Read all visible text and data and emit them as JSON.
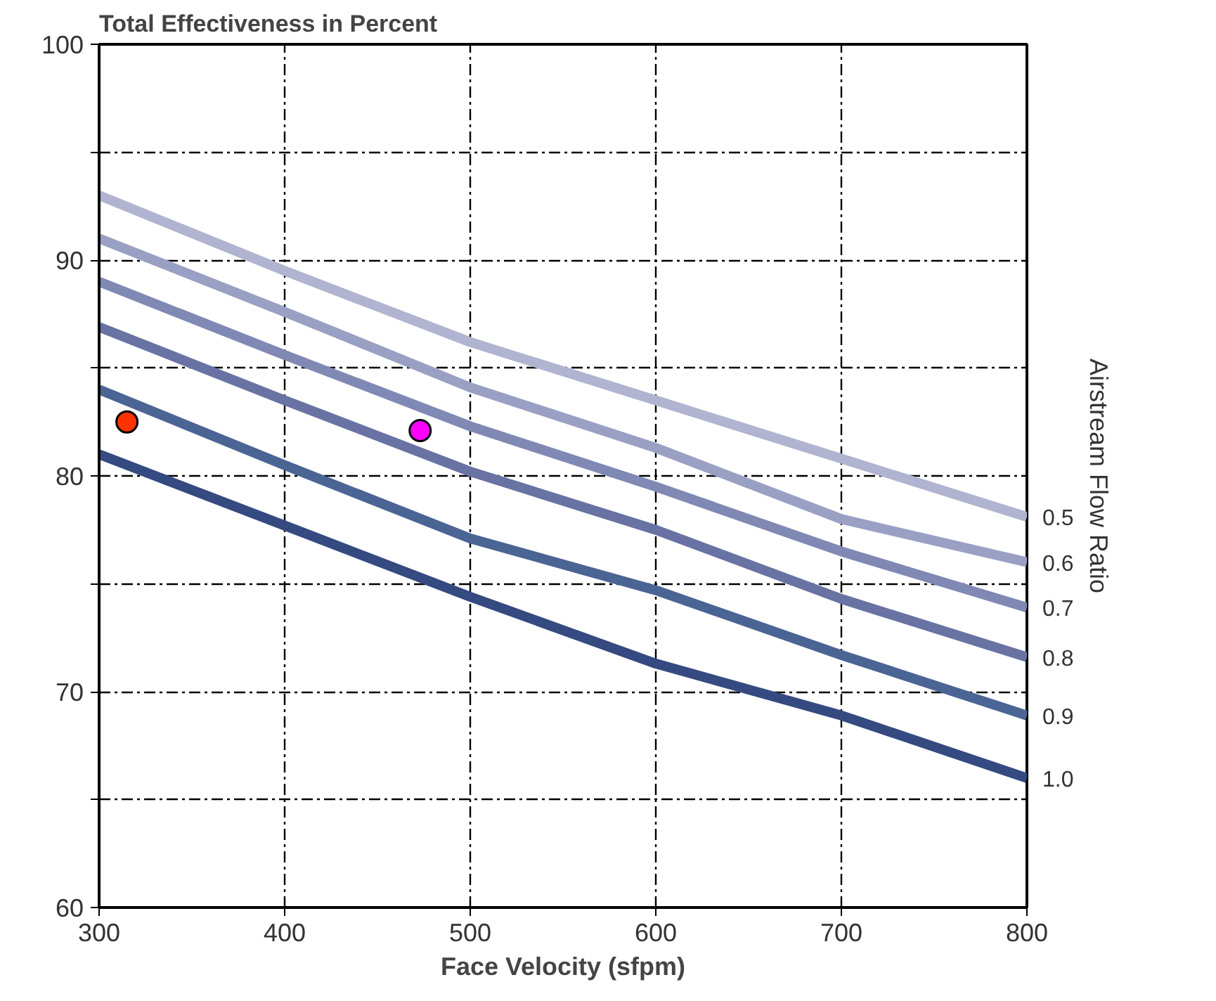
{
  "chart_data": {
    "type": "line",
    "title": "Total Effectiveness in Percent",
    "xlabel": "Face Velocity (sfpm)",
    "legend_title": "Airstream Flow Ratio",
    "grid": true,
    "line_style": "solid",
    "marker": "none",
    "x": [
      300,
      400,
      500,
      600,
      700,
      800
    ],
    "xlim": [
      300,
      800
    ],
    "xticks": [
      300,
      400,
      500,
      600,
      700,
      800
    ],
    "ylim": [
      60,
      100
    ],
    "yticks": [
      60,
      {
        "value": 65,
        "label": null
      },
      70,
      {
        "value": 75,
        "label": null
      },
      80,
      {
        "value": 85,
        "label": null
      },
      90,
      {
        "value": 95,
        "label": null
      },
      100
    ],
    "series": [
      {
        "name": "0.5",
        "color": "#b0b4d0",
        "values": [
          93.0,
          89.5,
          86.2,
          83.5,
          80.8,
          78.1
        ]
      },
      {
        "name": "0.6",
        "color": "#9aa0c4",
        "values": [
          91.0,
          87.6,
          84.1,
          81.3,
          78.0,
          76.0
        ]
      },
      {
        "name": "0.7",
        "color": "#8088b4",
        "values": [
          89.0,
          85.6,
          82.3,
          79.5,
          76.5,
          73.9
        ]
      },
      {
        "name": "0.8",
        "color": "#6873a3",
        "values": [
          86.9,
          83.5,
          80.2,
          77.5,
          74.3,
          71.6
        ]
      },
      {
        "name": "0.9",
        "color": "#4a6494",
        "values": [
          84.0,
          80.5,
          77.1,
          74.7,
          71.7,
          68.9
        ]
      },
      {
        "name": "1.0",
        "color": "#344a80",
        "values": [
          81.0,
          77.7,
          74.4,
          71.3,
          68.9,
          66.0
        ]
      },
      {
        "type": "scatter",
        "marker": "circle",
        "color": "#ff3300",
        "x": [
          315
        ],
        "values": [
          82.5
        ]
      },
      {
        "type": "scatter",
        "marker": "circle",
        "color": "#ff00ff",
        "x": [
          473
        ],
        "values": [
          82.1
        ]
      }
    ]
  }
}
